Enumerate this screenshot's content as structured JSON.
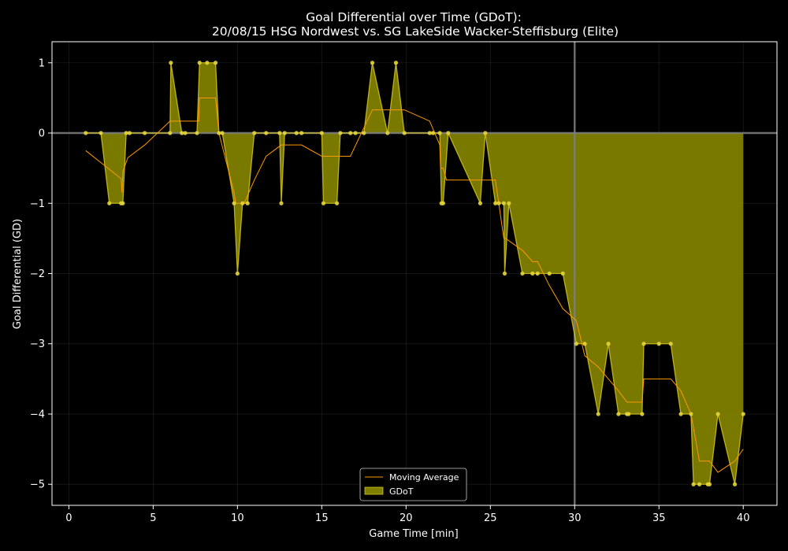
{
  "chart_data": {
    "type": "area",
    "title": "Goal Differential over Time (GDoT):",
    "subtitle": "20/08/15 HSG Nordwest  vs.  SG LakeSide Wacker-Steffisburg (Elite)",
    "xlabel": "Game Time [min]",
    "ylabel": "Goal Differential (GD)",
    "xlim": [
      -1,
      42
    ],
    "ylim": [
      -5.3,
      1.3
    ],
    "xticks": [
      0,
      5,
      10,
      15,
      20,
      25,
      30,
      35,
      40
    ],
    "yticks": [
      1,
      0,
      -1,
      -2,
      -3,
      -4,
      -5
    ],
    "xtick_labels": [
      "0",
      "5",
      "10",
      "15",
      "20",
      "25",
      "30",
      "35",
      "40"
    ],
    "ytick_labels": [
      "1",
      "0",
      "−1",
      "−2",
      "−3",
      "−4",
      "−5"
    ],
    "grid": true,
    "reference_lines": {
      "vertical_x": 30,
      "horizontal_y": 0
    },
    "legend": {
      "placement": "bottom-center",
      "entries": [
        "Moving Average",
        "GDoT"
      ]
    },
    "colors": {
      "background": "#000000",
      "gdot_fill": "#808000",
      "gdot_line": "#d4c41e",
      "gdot_marker": "#e3d43a",
      "moving_average": "#ff9900",
      "reference": "#7f7f7f",
      "axis": "#ffffff"
    },
    "series": [
      {
        "name": "GDoT",
        "x": [
          1.0,
          1.9,
          2.4,
          3.1,
          3.2,
          3.4,
          3.6,
          4.5,
          6.0,
          6.05,
          6.7,
          6.9,
          7.6,
          7.75,
          8.2,
          8.7,
          8.9,
          9.1,
          9.8,
          10.0,
          10.3,
          10.6,
          11.0,
          11.7,
          12.5,
          12.6,
          12.8,
          13.5,
          13.8,
          15.0,
          15.1,
          15.9,
          16.1,
          16.7,
          17.0,
          17.5,
          18.0,
          18.9,
          19.4,
          19.9,
          21.4,
          21.6,
          22.0,
          22.1,
          22.2,
          22.5,
          24.4,
          24.7,
          25.3,
          25.5,
          25.8,
          25.85,
          26.1,
          26.9,
          27.5,
          27.8,
          28.5,
          29.3,
          30.1,
          30.6,
          31.4,
          32.0,
          32.6,
          33.1,
          33.2,
          34.0,
          34.1,
          35.0,
          35.7,
          36.3,
          36.9,
          37.05,
          37.4,
          37.9,
          38.0,
          38.5,
          39.5,
          40.0
        ],
        "y": [
          0,
          0,
          -1,
          -1,
          -1,
          0,
          0,
          0,
          0,
          1,
          0,
          0,
          0,
          1,
          1,
          1,
          0,
          0,
          -1,
          -2,
          -1,
          -1,
          0,
          0,
          0,
          -1,
          0,
          0,
          0,
          0,
          -1,
          -1,
          0,
          0,
          0,
          0,
          1,
          0,
          1,
          0,
          0,
          0,
          0,
          -1,
          -1,
          0,
          -1,
          0,
          -1,
          -1,
          -1,
          -2,
          -1,
          -2,
          -2,
          -2,
          -2,
          -2,
          -3,
          -3,
          -4,
          -3,
          -4,
          -4,
          -4,
          -4,
          -3,
          -3,
          -3,
          -4,
          -4,
          -5,
          -5,
          -5,
          -5,
          -4,
          -5,
          -4
        ]
      },
      {
        "name": "Moving Average",
        "x": [
          1.0,
          3.1,
          3.15,
          3.2,
          3.5,
          4.5,
          6.0,
          7.7,
          7.75,
          8.7,
          8.9,
          9.8,
          9.9,
          10.4,
          11.0,
          11.7,
          12.6,
          13.8,
          15.0,
          16.7,
          18.0,
          19.9,
          21.4,
          22.0,
          22.05,
          22.2,
          22.4,
          25.3,
          25.8,
          25.9,
          26.9,
          27.5,
          27.8,
          28.5,
          29.3,
          30.1,
          30.6,
          31.4,
          32.6,
          33.1,
          34.0,
          34.1,
          35.7,
          36.3,
          36.9,
          37.4,
          38.0,
          38.5,
          39.5,
          40.0
        ],
        "y": [
          -0.25,
          -0.65,
          -0.85,
          -0.55,
          -0.35,
          -0.17,
          0.17,
          0.17,
          0.5,
          0.5,
          0.0,
          -0.85,
          -1.0,
          -1.0,
          -0.67,
          -0.33,
          -0.17,
          -0.17,
          -0.33,
          -0.33,
          0.33,
          0.33,
          0.17,
          -0.17,
          -0.5,
          -0.5,
          -0.67,
          -0.67,
          -1.5,
          -1.5,
          -1.67,
          -1.83,
          -1.83,
          -2.17,
          -2.5,
          -2.67,
          -3.17,
          -3.33,
          -3.67,
          -3.83,
          -3.83,
          -3.5,
          -3.5,
          -3.67,
          -4.0,
          -4.67,
          -4.67,
          -4.83,
          -4.67,
          -4.5
        ]
      }
    ]
  }
}
